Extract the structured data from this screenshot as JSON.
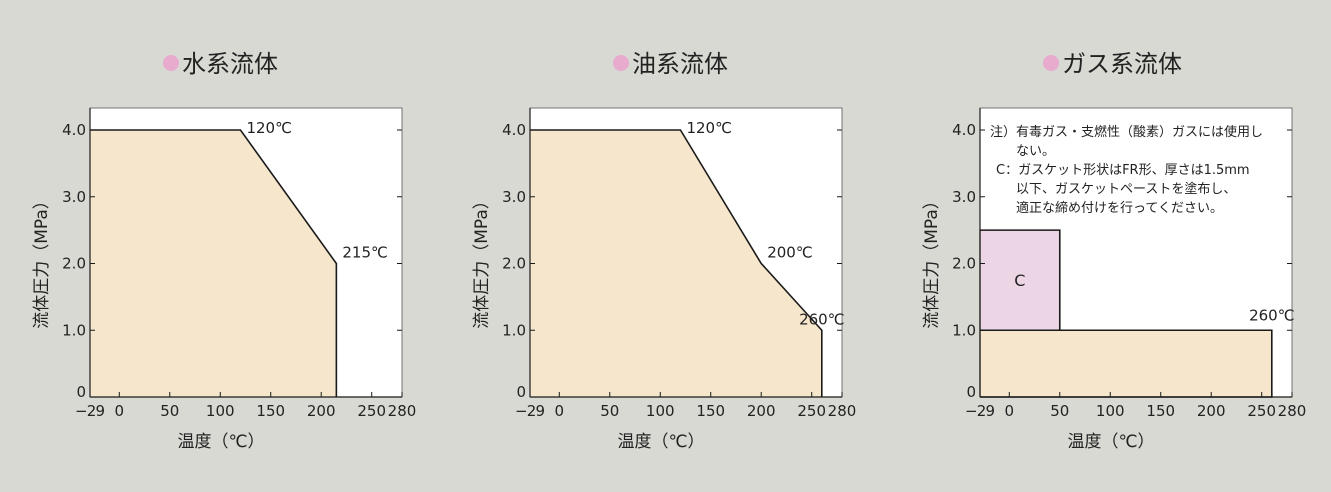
{
  "colors": {
    "background": "#d9d9d4",
    "plot_area": "#ffffff",
    "fill_beige": "#f5e6cc",
    "fill_pink": "#ecd6e6",
    "bullet_pink": "#e8aacd",
    "line": "#1a1a1a",
    "text": "#222222"
  },
  "chart_data": [
    {
      "type": "area",
      "title": "水系流体",
      "xlabel": "温度（℃）",
      "ylabel": "流体圧力（MPa）",
      "xlim": [
        -29,
        280
      ],
      "ylim": [
        0,
        4.0
      ],
      "x_ticks": [
        -29,
        0,
        50,
        100,
        150,
        200,
        250,
        280
      ],
      "x_tick_labels": [
        "−29",
        "0",
        "50",
        "100",
        "150",
        "200",
        "250",
        "280"
      ],
      "y_ticks": [
        0,
        1.0,
        2.0,
        3.0,
        4.0
      ],
      "y_tick_labels": [
        "0",
        "1.0",
        "2.0",
        "3.0",
        "4.0"
      ],
      "grid": false,
      "series": [
        {
          "points": [
            [
              -29,
              4.0
            ],
            [
              120,
              4.0
            ],
            [
              215,
              2.0
            ],
            [
              215,
              0
            ]
          ],
          "fill": "beige"
        }
      ],
      "annotations": [
        {
          "text": "120℃",
          "x": 120,
          "y": 4.0
        },
        {
          "text": "215℃",
          "x": 215,
          "y": 2.0
        }
      ],
      "notes": []
    },
    {
      "type": "area",
      "title": "油系流体",
      "xlabel": "温度（℃）",
      "ylabel": "流体圧力（MPa）",
      "xlim": [
        -29,
        280
      ],
      "ylim": [
        0,
        4.0
      ],
      "x_ticks": [
        -29,
        0,
        50,
        100,
        150,
        200,
        250,
        280
      ],
      "x_tick_labels": [
        "−29",
        "0",
        "50",
        "100",
        "150",
        "200",
        "250",
        "280"
      ],
      "y_ticks": [
        0,
        1.0,
        2.0,
        3.0,
        4.0
      ],
      "y_tick_labels": [
        "0",
        "1.0",
        "2.0",
        "3.0",
        "4.0"
      ],
      "grid": false,
      "series": [
        {
          "points": [
            [
              -29,
              4.0
            ],
            [
              120,
              4.0
            ],
            [
              200,
              2.0
            ],
            [
              260,
              1.0
            ],
            [
              260,
              0
            ]
          ],
          "fill": "beige"
        }
      ],
      "annotations": [
        {
          "text": "120℃",
          "x": 120,
          "y": 4.0
        },
        {
          "text": "200℃",
          "x": 200,
          "y": 2.0
        },
        {
          "text": "260℃",
          "x": 260,
          "y": 1.0
        }
      ],
      "notes": []
    },
    {
      "type": "area",
      "title": "ガス系流体",
      "xlabel": "温度（℃）",
      "ylabel": "流体圧力（MPa）",
      "xlim": [
        -29,
        280
      ],
      "ylim": [
        0,
        4.0
      ],
      "x_ticks": [
        -29,
        0,
        50,
        100,
        150,
        200,
        250,
        280
      ],
      "x_tick_labels": [
        "−29",
        "0",
        "50",
        "100",
        "150",
        "200",
        "250",
        "280"
      ],
      "y_ticks": [
        0,
        1.0,
        2.0,
        3.0,
        4.0
      ],
      "y_tick_labels": [
        "0",
        "1.0",
        "2.0",
        "3.0",
        "4.0"
      ],
      "grid": false,
      "series": [
        {
          "points": [
            [
              -29,
              1.0
            ],
            [
              260,
              1.0
            ],
            [
              260,
              0
            ],
            [
              -29,
              0
            ]
          ],
          "fill": "beige"
        },
        {
          "points": [
            [
              -29,
              2.5
            ],
            [
              50,
              2.5
            ],
            [
              50,
              1.0
            ],
            [
              -29,
              1.0
            ]
          ],
          "fill": "pink",
          "label": "C"
        }
      ],
      "annotations": [
        {
          "text": "260℃",
          "x": 260,
          "y": 1.0
        }
      ],
      "notes": [
        "注）有毒ガス・支燃性（酸素）ガスには使用し",
        "ない。",
        "C：ガスケット形状はFR形、厚さは1.5mm",
        "以下、ガスケットペーストを塗布し、",
        "適正な締め付けを行ってください。"
      ]
    }
  ]
}
